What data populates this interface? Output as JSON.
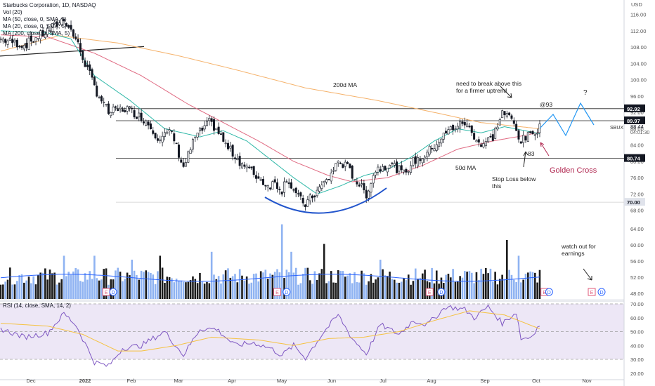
{
  "legend": {
    "title": "Starbucks Corporation, 1D, NASDAQ",
    "vol": "Vol (20)",
    "ma50": "MA (50, close, 0, SMA, 5)",
    "ma20": "MA (20, close, 0, SMA, 5)",
    "ma200": "MA (200, close, 0, SMA, 5)",
    "rsi": "RSI (14, close, SMA, 14, 2)"
  },
  "currency": "USD",
  "annotations": {
    "ma200_label": "200d MA",
    "ma50_label": "50d MA",
    "break_above": [
      "need to break above this",
      "for a firmer uptrend"
    ],
    "at93": "@93",
    "question": "?",
    "level83": "83",
    "stop_loss": [
      "Stop Loss below",
      "this"
    ],
    "golden_cross": "Golden Cross",
    "earnings": [
      "watch out for",
      "earnings"
    ]
  },
  "colors": {
    "up": "#131722",
    "down": "#131722",
    "vol_up": "#1c1c1c",
    "vol_down": "#8fb3f2",
    "ma20": "#2fb8a8",
    "ma50": "#e06a82",
    "ma200": "#f5b26b",
    "vol_ma": "#2962ff",
    "projection": "#2196f3",
    "cup": "#2255cc",
    "golden": "#b0264f",
    "rsi": "#7e57c2",
    "rsi_ma": "#f5c242",
    "rsi_band": "#ede7f6"
  },
  "chart_data": {
    "type": "candlestick",
    "symbol": "SBUX",
    "y_ticks": [
      "116.00",
      "112.00",
      "108.00",
      "104.00",
      "100.00",
      "96.00",
      "92.00",
      "88.00",
      "84.00",
      "80.00",
      "76.00",
      "72.00",
      "68.00",
      "64.00",
      "60.00",
      "56.00",
      "52.00",
      "48.00"
    ],
    "x_ticks": [
      "Dec",
      "2022",
      "Feb",
      "Mar",
      "Apr",
      "May",
      "Jun",
      "Jul",
      "Aug",
      "Sep",
      "Oct",
      "Nov"
    ],
    "rsi_ticks": [
      "70.00",
      "60.00",
      "50.00",
      "40.00",
      "30.00",
      "20.00"
    ],
    "price_labels": [
      {
        "text": "92.92",
        "value": 92.92,
        "style": "dark"
      },
      {
        "text": "89.97",
        "value": 89.97,
        "style": "dark"
      },
      {
        "text": "80.74",
        "value": 80.74,
        "style": "dark"
      },
      {
        "text": "70.00",
        "value": 70.0,
        "style": "light"
      }
    ],
    "last_price": {
      "text": "88.44",
      "value": 88.44
    },
    "countdown": "04:01:30",
    "horizontal_levels": [
      92.92,
      89.97,
      80.74,
      70.0
    ],
    "trendline": {
      "from": [
        "Nov 2021",
        106.5
      ],
      "to": [
        "Jan 2022",
        108.3
      ]
    },
    "projection": [
      [
        "Oct 1",
        88.5
      ],
      [
        "Oct 6",
        92.2
      ],
      [
        "Oct 10",
        86.3
      ],
      [
        "Oct 17",
        93.2
      ],
      [
        "Oct 24",
        88.7
      ],
      [
        "Nov 1",
        95.3
      ]
    ],
    "cup_curve": {
      "from": [
        "Apr 20",
        73.5
      ],
      "to": [
        "Jul 1",
        75.5
      ],
      "low": 67.5
    },
    "series_note": "close path keypoints by trading day",
    "close_keypoints": [
      [
        0,
        110
      ],
      [
        10,
        108.5
      ],
      [
        20,
        112
      ],
      [
        27,
        115
      ],
      [
        32,
        110
      ],
      [
        36,
        104
      ],
      [
        41,
        97
      ],
      [
        46,
        92
      ],
      [
        54,
        93
      ],
      [
        62,
        90
      ],
      [
        67,
        86
      ],
      [
        73,
        87
      ],
      [
        78,
        78.5
      ],
      [
        83,
        86
      ],
      [
        89,
        89.5
      ],
      [
        92,
        88
      ],
      [
        96,
        84
      ],
      [
        102,
        80
      ],
      [
        108,
        77
      ],
      [
        114,
        74
      ],
      [
        117,
        74.8
      ],
      [
        120,
        73
      ],
      [
        122,
        76
      ],
      [
        124,
        74
      ],
      [
        127,
        71
      ],
      [
        130,
        69.5
      ],
      [
        134,
        72
      ],
      [
        140,
        76
      ],
      [
        144,
        80
      ],
      [
        148,
        78.5
      ],
      [
        152,
        75
      ],
      [
        156,
        72
      ],
      [
        160,
        78
      ],
      [
        166,
        79.5
      ],
      [
        172,
        77
      ],
      [
        176,
        80
      ],
      [
        180,
        81
      ],
      [
        186,
        84.5
      ],
      [
        192,
        88
      ],
      [
        198,
        89.5
      ],
      [
        205,
        84
      ],
      [
        210,
        86
      ],
      [
        214,
        92
      ],
      [
        218,
        90.3
      ],
      [
        222,
        85
      ],
      [
        226,
        86.5
      ],
      [
        230,
        88.4
      ]
    ],
    "ma200_keypoints": [
      [
        0,
        107
      ],
      [
        25,
        110.8
      ],
      [
        50,
        109
      ],
      [
        75,
        106
      ],
      [
        100,
        102.5
      ],
      [
        130,
        98
      ],
      [
        160,
        95
      ],
      [
        185,
        92
      ],
      [
        205,
        89.5
      ],
      [
        230,
        88
      ]
    ],
    "ma50_keypoints": [
      [
        0,
        111
      ],
      [
        20,
        110.5
      ],
      [
        40,
        106.5
      ],
      [
        60,
        101
      ],
      [
        80,
        94
      ],
      [
        95,
        89.5
      ],
      [
        110,
        85
      ],
      [
        125,
        80
      ],
      [
        140,
        76.5
      ],
      [
        150,
        75
      ],
      [
        165,
        76
      ],
      [
        180,
        79
      ],
      [
        195,
        83
      ],
      [
        210,
        85
      ],
      [
        225,
        86.5
      ],
      [
        230,
        87.2
      ]
    ],
    "ma20_keypoints": [
      [
        0,
        112
      ],
      [
        20,
        111.5
      ],
      [
        30,
        110
      ],
      [
        40,
        101
      ],
      [
        55,
        95
      ],
      [
        70,
        88
      ],
      [
        85,
        86
      ],
      [
        95,
        87.5
      ],
      [
        105,
        85
      ],
      [
        115,
        80.5
      ],
      [
        125,
        76
      ],
      [
        135,
        72
      ],
      [
        145,
        74
      ],
      [
        155,
        76.5
      ],
      [
        165,
        78
      ],
      [
        175,
        81
      ],
      [
        185,
        85
      ],
      [
        195,
        88
      ],
      [
        205,
        87
      ],
      [
        215,
        88.5
      ],
      [
        230,
        86.8
      ]
    ],
    "rsi_keypoints": [
      [
        0,
        52
      ],
      [
        10,
        46
      ],
      [
        20,
        49
      ],
      [
        27,
        63
      ],
      [
        32,
        55
      ],
      [
        40,
        28
      ],
      [
        46,
        25
      ],
      [
        52,
        38
      ],
      [
        60,
        40
      ],
      [
        70,
        50
      ],
      [
        78,
        33
      ],
      [
        85,
        52
      ],
      [
        92,
        52
      ],
      [
        100,
        40
      ],
      [
        108,
        42
      ],
      [
        115,
        38
      ],
      [
        120,
        33
      ],
      [
        125,
        40
      ],
      [
        130,
        31
      ],
      [
        138,
        50
      ],
      [
        144,
        62
      ],
      [
        150,
        45
      ],
      [
        156,
        34
      ],
      [
        162,
        55
      ],
      [
        170,
        48
      ],
      [
        176,
        58
      ],
      [
        182,
        55
      ],
      [
        190,
        68
      ],
      [
        198,
        66
      ],
      [
        202,
        60
      ],
      [
        208,
        68
      ],
      [
        214,
        56
      ],
      [
        220,
        64
      ],
      [
        222,
        45
      ],
      [
        226,
        46
      ],
      [
        230,
        55
      ]
    ],
    "rsi_ma_keypoints": [
      [
        0,
        56
      ],
      [
        20,
        54
      ],
      [
        35,
        48
      ],
      [
        50,
        36
      ],
      [
        60,
        36
      ],
      [
        75,
        40
      ],
      [
        90,
        46
      ],
      [
        110,
        44
      ],
      [
        125,
        40
      ],
      [
        140,
        45
      ],
      [
        155,
        46
      ],
      [
        170,
        50
      ],
      [
        185,
        58
      ],
      [
        200,
        65
      ],
      [
        215,
        62
      ],
      [
        230,
        52
      ]
    ],
    "volume_scale_note": "relative bar heights",
    "volume_spikes": [
      [
        27,
        0.55
      ],
      [
        40,
        0.55
      ],
      [
        56,
        0.5
      ],
      [
        68,
        0.55
      ],
      [
        90,
        0.6
      ],
      [
        120,
        0.95
      ],
      [
        124,
        0.6
      ],
      [
        138,
        0.7
      ],
      [
        162,
        0.5
      ],
      [
        216,
        0.75
      ],
      [
        221,
        0.55
      ]
    ],
    "earnings_markers": [
      [
        45,
        "E"
      ],
      [
        48,
        "D"
      ],
      [
        118,
        "E"
      ],
      [
        122,
        "D"
      ],
      [
        183,
        "E"
      ],
      [
        188,
        "D"
      ],
      [
        232,
        "E"
      ],
      [
        234,
        "D"
      ]
    ],
    "earnings_future": [
      [
        "Oct 31",
        "E"
      ],
      [
        "Nov 3",
        "D"
      ]
    ]
  }
}
